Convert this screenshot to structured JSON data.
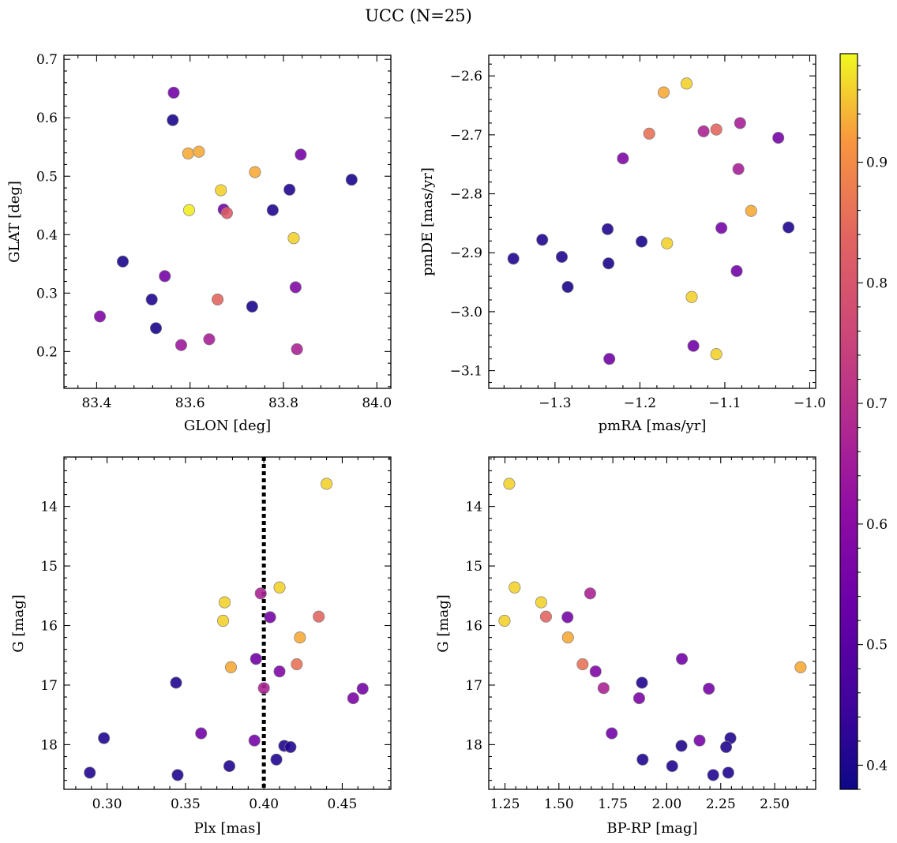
{
  "figure": {
    "title": "UCC (N=25)"
  },
  "colorbar": {
    "colormap": "plasma",
    "range": [
      0.38,
      0.99
    ],
    "ticks": [
      "0.4",
      "0.5",
      "0.6",
      "0.7",
      "0.8",
      "0.9"
    ]
  },
  "chart_data": [
    {
      "type": "scatter",
      "title": "",
      "xlabel": "GLON [deg]",
      "ylabel": "GLAT [deg]",
      "xlim": [
        83.33,
        84.03
      ],
      "ylim": [
        0.137,
        0.707
      ],
      "y_inverted": false,
      "xticks": [
        "83.4",
        "83.6",
        "83.8",
        "84.0"
      ],
      "yticks": [
        "0.2",
        "0.3",
        "0.4",
        "0.5",
        "0.6",
        "0.7"
      ],
      "points": [
        {
          "x": 83.565,
          "y": 0.643,
          "c": 0.55
        },
        {
          "x": 83.563,
          "y": 0.596,
          "c": 0.4
        },
        {
          "x": 83.596,
          "y": 0.539,
          "c": 0.93
        },
        {
          "x": 83.619,
          "y": 0.542,
          "c": 0.93
        },
        {
          "x": 83.837,
          "y": 0.537,
          "c": 0.56
        },
        {
          "x": 83.946,
          "y": 0.494,
          "c": 0.4
        },
        {
          "x": 83.739,
          "y": 0.507,
          "c": 0.93
        },
        {
          "x": 83.813,
          "y": 0.477,
          "c": 0.41
        },
        {
          "x": 83.666,
          "y": 0.476,
          "c": 0.96
        },
        {
          "x": 83.598,
          "y": 0.442,
          "c": 0.98
        },
        {
          "x": 83.672,
          "y": 0.443,
          "c": 0.55
        },
        {
          "x": 83.679,
          "y": 0.437,
          "c": 0.82
        },
        {
          "x": 83.777,
          "y": 0.442,
          "c": 0.41
        },
        {
          "x": 83.822,
          "y": 0.394,
          "c": 0.96
        },
        {
          "x": 83.456,
          "y": 0.354,
          "c": 0.4
        },
        {
          "x": 83.546,
          "y": 0.329,
          "c": 0.56
        },
        {
          "x": 83.826,
          "y": 0.31,
          "c": 0.58
        },
        {
          "x": 83.518,
          "y": 0.289,
          "c": 0.41
        },
        {
          "x": 83.659,
          "y": 0.289,
          "c": 0.84
        },
        {
          "x": 83.733,
          "y": 0.277,
          "c": 0.4
        },
        {
          "x": 83.407,
          "y": 0.26,
          "c": 0.58
        },
        {
          "x": 83.527,
          "y": 0.24,
          "c": 0.4
        },
        {
          "x": 83.641,
          "y": 0.221,
          "c": 0.66
        },
        {
          "x": 83.581,
          "y": 0.211,
          "c": 0.64
        },
        {
          "x": 83.829,
          "y": 0.204,
          "c": 0.67
        }
      ]
    },
    {
      "type": "scatter",
      "title": "",
      "xlabel": "pmRA [mas/yr]",
      "ylabel": "pmDE [mas/yr]",
      "xlim": [
        -1.378,
        -0.993
      ],
      "ylim": [
        -3.13,
        -2.565
      ],
      "y_inverted": false,
      "xticks": [
        "−1.3",
        "−1.2",
        "−1.1",
        "−1.0"
      ],
      "yticks": [
        "−2.6",
        "−2.7",
        "−2.8",
        "−2.9",
        "−3.0",
        "−3.1"
      ],
      "points": [
        {
          "x": -1.145,
          "y": -2.613,
          "c": 0.96
        },
        {
          "x": -1.172,
          "y": -2.628,
          "c": 0.93
        },
        {
          "x": -1.189,
          "y": -2.698,
          "c": 0.86
        },
        {
          "x": -1.125,
          "y": -2.694,
          "c": 0.67
        },
        {
          "x": -1.11,
          "y": -2.691,
          "c": 0.84
        },
        {
          "x": -1.082,
          "y": -2.68,
          "c": 0.66
        },
        {
          "x": -1.037,
          "y": -2.705,
          "c": 0.56
        },
        {
          "x": -1.22,
          "y": -2.74,
          "c": 0.58
        },
        {
          "x": -1.084,
          "y": -2.758,
          "c": 0.66
        },
        {
          "x": -1.069,
          "y": -2.829,
          "c": 0.93
        },
        {
          "x": -1.025,
          "y": -2.857,
          "c": 0.41
        },
        {
          "x": -1.104,
          "y": -2.858,
          "c": 0.56
        },
        {
          "x": -1.238,
          "y": -2.86,
          "c": 0.41
        },
        {
          "x": -1.315,
          "y": -2.878,
          "c": 0.41
        },
        {
          "x": -1.198,
          "y": -2.881,
          "c": 0.4
        },
        {
          "x": -1.168,
          "y": -2.884,
          "c": 0.96
        },
        {
          "x": -1.349,
          "y": -2.91,
          "c": 0.41
        },
        {
          "x": -1.292,
          "y": -2.907,
          "c": 0.41
        },
        {
          "x": -1.237,
          "y": -2.918,
          "c": 0.4
        },
        {
          "x": -1.086,
          "y": -2.931,
          "c": 0.55
        },
        {
          "x": -1.285,
          "y": -2.958,
          "c": 0.4
        },
        {
          "x": -1.139,
          "y": -2.975,
          "c": 0.96
        },
        {
          "x": -1.137,
          "y": -3.058,
          "c": 0.55
        },
        {
          "x": -1.11,
          "y": -3.072,
          "c": 0.96
        },
        {
          "x": -1.236,
          "y": -3.08,
          "c": 0.55
        }
      ]
    },
    {
      "type": "scatter",
      "title": "",
      "xlabel": "Plx [mas]",
      "ylabel": "G [mag]",
      "xlim": [
        0.2725,
        0.481
      ],
      "ylim": [
        18.75,
        13.17
      ],
      "y_inverted": true,
      "xticks": [
        "0.30",
        "0.35",
        "0.40",
        "0.45"
      ],
      "yticks": [
        "14",
        "15",
        "16",
        "17",
        "18"
      ],
      "vline": {
        "x": 0.4,
        "style": "dotted",
        "color": "#000000"
      },
      "points": [
        {
          "x": 0.44,
          "y": 13.62,
          "c": 0.96
        },
        {
          "x": 0.41,
          "y": 15.36,
          "c": 0.96
        },
        {
          "x": 0.398,
          "y": 15.46,
          "c": 0.67
        },
        {
          "x": 0.375,
          "y": 15.61,
          "c": 0.96
        },
        {
          "x": 0.404,
          "y": 15.86,
          "c": 0.56
        },
        {
          "x": 0.435,
          "y": 15.85,
          "c": 0.84
        },
        {
          "x": 0.374,
          "y": 15.92,
          "c": 0.96
        },
        {
          "x": 0.423,
          "y": 16.2,
          "c": 0.93
        },
        {
          "x": 0.395,
          "y": 16.56,
          "c": 0.55
        },
        {
          "x": 0.421,
          "y": 16.65,
          "c": 0.86
        },
        {
          "x": 0.379,
          "y": 16.7,
          "c": 0.93
        },
        {
          "x": 0.41,
          "y": 16.77,
          "c": 0.58
        },
        {
          "x": 0.344,
          "y": 16.96,
          "c": 0.41
        },
        {
          "x": 0.4,
          "y": 17.05,
          "c": 0.67
        },
        {
          "x": 0.463,
          "y": 17.06,
          "c": 0.56
        },
        {
          "x": 0.457,
          "y": 17.22,
          "c": 0.57
        },
        {
          "x": 0.36,
          "y": 17.81,
          "c": 0.55
        },
        {
          "x": 0.298,
          "y": 17.89,
          "c": 0.41
        },
        {
          "x": 0.394,
          "y": 17.93,
          "c": 0.56
        },
        {
          "x": 0.413,
          "y": 18.02,
          "c": 0.41
        },
        {
          "x": 0.417,
          "y": 18.04,
          "c": 0.41
        },
        {
          "x": 0.408,
          "y": 18.25,
          "c": 0.41
        },
        {
          "x": 0.378,
          "y": 18.36,
          "c": 0.41
        },
        {
          "x": 0.289,
          "y": 18.47,
          "c": 0.41
        },
        {
          "x": 0.345,
          "y": 18.51,
          "c": 0.41
        }
      ]
    },
    {
      "type": "scatter",
      "title": "",
      "xlabel": "BP-RP [mag]",
      "ylabel": "G [mag]",
      "xlim": [
        1.175,
        2.69
      ],
      "ylim": [
        18.75,
        13.17
      ],
      "y_inverted": true,
      "xticks": [
        "1.25",
        "1.50",
        "1.75",
        "2.00",
        "2.25",
        "2.50"
      ],
      "yticks": [
        "14",
        "15",
        "16",
        "17",
        "18"
      ],
      "points": [
        {
          "x": 1.27,
          "y": 13.62,
          "c": 0.96
        },
        {
          "x": 1.295,
          "y": 15.36,
          "c": 0.96
        },
        {
          "x": 1.645,
          "y": 15.46,
          "c": 0.67
        },
        {
          "x": 1.418,
          "y": 15.61,
          "c": 0.96
        },
        {
          "x": 1.54,
          "y": 15.86,
          "c": 0.56
        },
        {
          "x": 1.44,
          "y": 15.85,
          "c": 0.84
        },
        {
          "x": 1.248,
          "y": 15.92,
          "c": 0.96
        },
        {
          "x": 1.542,
          "y": 16.2,
          "c": 0.93
        },
        {
          "x": 2.07,
          "y": 16.56,
          "c": 0.55
        },
        {
          "x": 1.61,
          "y": 16.65,
          "c": 0.86
        },
        {
          "x": 2.62,
          "y": 16.7,
          "c": 0.93
        },
        {
          "x": 1.67,
          "y": 16.77,
          "c": 0.58
        },
        {
          "x": 1.885,
          "y": 16.96,
          "c": 0.41
        },
        {
          "x": 1.707,
          "y": 17.05,
          "c": 0.67
        },
        {
          "x": 2.195,
          "y": 17.06,
          "c": 0.56
        },
        {
          "x": 1.872,
          "y": 17.22,
          "c": 0.57
        },
        {
          "x": 1.745,
          "y": 17.81,
          "c": 0.55
        },
        {
          "x": 2.295,
          "y": 17.89,
          "c": 0.41
        },
        {
          "x": 2.152,
          "y": 17.93,
          "c": 0.56
        },
        {
          "x": 2.068,
          "y": 18.02,
          "c": 0.41
        },
        {
          "x": 2.275,
          "y": 18.04,
          "c": 0.41
        },
        {
          "x": 1.888,
          "y": 18.25,
          "c": 0.41
        },
        {
          "x": 2.025,
          "y": 18.36,
          "c": 0.41
        },
        {
          "x": 2.285,
          "y": 18.47,
          "c": 0.41
        },
        {
          "x": 2.215,
          "y": 18.51,
          "c": 0.41
        }
      ]
    }
  ]
}
